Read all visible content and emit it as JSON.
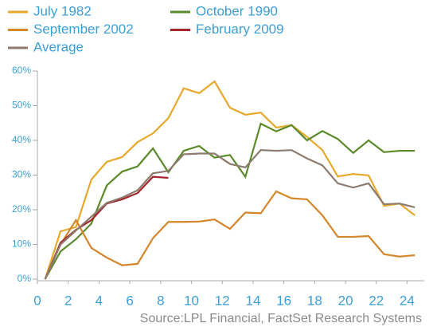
{
  "chart_data": {
    "type": "line",
    "x": [
      0.5,
      1.5,
      2.5,
      3.5,
      4.5,
      5.5,
      6.5,
      7.5,
      8.5,
      9.5,
      10.5,
      11.5,
      12.5,
      13.5,
      14.5,
      15.5,
      16.5,
      17.5,
      18.5,
      19.5,
      20.5,
      21.5,
      22.5,
      23.5,
      24.5
    ],
    "series": [
      {
        "name": "July 1982",
        "color": "#e8a92a",
        "values": [
          0,
          13.8,
          15,
          28.7,
          33.8,
          35.2,
          39.5,
          42,
          46.4,
          55,
          53.6,
          57,
          49.4,
          47.4,
          48,
          43.7,
          44.4,
          41,
          37.2,
          29.6,
          30.3,
          29.9,
          21.1,
          21.8,
          18.4
        ]
      },
      {
        "name": "October 1990",
        "color": "#5a8a2a",
        "values": [
          0,
          8,
          11.5,
          16,
          27,
          31,
          32.5,
          37.7,
          30.8,
          37,
          38.4,
          35,
          35.8,
          29.5,
          44.8,
          42.6,
          44.4,
          40,
          42.7,
          40.4,
          36.4,
          40,
          36.6,
          37,
          37
        ]
      },
      {
        "name": "September 2002",
        "color": "#d4862a",
        "values": [
          0,
          10,
          17,
          9,
          6.2,
          4,
          4.4,
          11.8,
          16.5,
          16.5,
          16.6,
          17.2,
          14.5,
          19.2,
          19,
          25.3,
          23.3,
          23,
          18.4,
          12.2,
          12.2,
          12.4,
          7.2,
          6.5,
          6.9
        ]
      },
      {
        "name": "February 2009",
        "color": "#a3262c",
        "values": [
          0,
          10.5,
          14.2,
          17,
          21.8,
          23,
          24.8,
          29.5,
          29.2,
          null,
          null,
          null,
          null,
          null,
          null,
          null,
          null,
          null,
          null,
          null,
          null,
          null,
          null,
          null,
          null
        ]
      },
      {
        "name": "Average",
        "color": "#8c7b6e",
        "values": [
          0,
          10,
          14,
          18,
          22,
          23.5,
          25.6,
          30.5,
          31.2,
          36,
          36.2,
          36.2,
          33.2,
          32.2,
          37.2,
          37,
          37.2,
          34.8,
          32.8,
          27.6,
          26.4,
          27.6,
          21.6,
          21.8,
          20.7
        ]
      }
    ],
    "xlim": [
      0,
      24.8
    ],
    "xticks": [
      0,
      2,
      4,
      6,
      8,
      10,
      12,
      14,
      16,
      18,
      20,
      22,
      24
    ],
    "ylim": [
      0,
      60
    ],
    "yticks": [
      {
        "value": 0,
        "label": "0%"
      },
      {
        "value": 10,
        "label": "10%"
      },
      {
        "value": 20,
        "label": "20%"
      },
      {
        "value": 30,
        "label": "30%"
      },
      {
        "value": 40,
        "label": "40%"
      },
      {
        "value": 50,
        "label": "50%"
      },
      {
        "value": 60,
        "label": "60%"
      }
    ],
    "source": "Source:LPL Financial, FactSet Research Systems"
  }
}
